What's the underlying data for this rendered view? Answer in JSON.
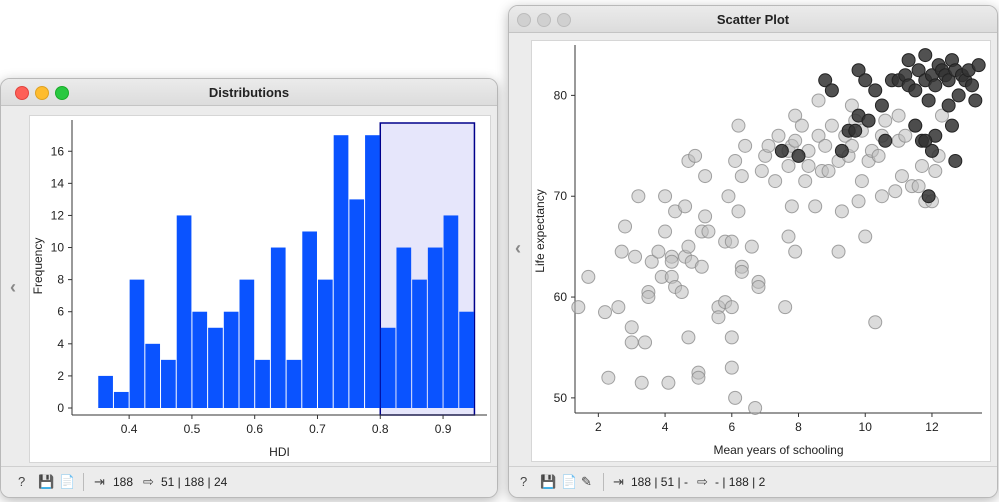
{
  "distributions": {
    "title": "Distributions",
    "status": {
      "input_count": "188",
      "output_counts": "51 | 188 | 24"
    }
  },
  "scatter": {
    "title": "Scatter Plot",
    "status": {
      "input_counts": "188 | 51 | -",
      "output_counts": "- | 188 | 2"
    }
  },
  "icons": {
    "help": "help-icon",
    "save": "save-icon",
    "report": "report-icon",
    "input": "input-icon",
    "output": "output-icon",
    "brush": "brush-icon"
  },
  "colors": {
    "bar": "#0a53ff",
    "selection_fill": "#e6e6fb",
    "selection_border": "#00008b",
    "point_gray": "#bdbdbd",
    "point_dark": "#333333"
  },
  "chart_data": [
    {
      "type": "bar",
      "xlabel": "HDI",
      "ylabel": "Frequency",
      "x_ticks": [
        "0.4",
        "0.5",
        "0.6",
        "0.7",
        "0.8",
        "0.9"
      ],
      "y_ticks": [
        "0",
        "2",
        "4",
        "6",
        "8",
        "10",
        "12",
        "14",
        "16"
      ],
      "bin_start": 0.35,
      "bin_width": 0.025,
      "values": [
        2,
        1,
        8,
        4,
        3,
        12,
        6,
        5,
        6,
        8,
        3,
        10,
        3,
        11,
        8,
        17,
        13,
        17,
        5,
        10,
        8,
        10,
        12,
        6
      ],
      "ylim": [
        0,
        17.2
      ],
      "selection": [
        0.8,
        0.95
      ]
    },
    {
      "type": "scatter",
      "xlabel": "Mean years of schooling",
      "ylabel": "Life expectancy",
      "x_ticks": [
        "2",
        "4",
        "6",
        "8",
        "10",
        "12"
      ],
      "y_ticks": [
        "50",
        "60",
        "70",
        "80"
      ],
      "xlim": [
        1.3,
        13.5
      ],
      "ylim": [
        48.5,
        85
      ],
      "points_gray": [
        [
          1.4,
          59
        ],
        [
          1.7,
          62
        ],
        [
          2.2,
          58.5
        ],
        [
          2.3,
          52
        ],
        [
          2.6,
          59
        ],
        [
          2.7,
          64.5
        ],
        [
          2.8,
          67
        ],
        [
          3.0,
          57
        ],
        [
          3.0,
          55.5
        ],
        [
          3.1,
          64
        ],
        [
          3.2,
          70
        ],
        [
          3.3,
          51.5
        ],
        [
          3.4,
          55.5
        ],
        [
          3.5,
          60.5
        ],
        [
          3.5,
          60
        ],
        [
          3.6,
          63.5
        ],
        [
          3.8,
          64.5
        ],
        [
          3.9,
          62
        ],
        [
          4.0,
          70
        ],
        [
          4.0,
          66.5
        ],
        [
          4.1,
          51.5
        ],
        [
          4.2,
          64
        ],
        [
          4.2,
          63.5
        ],
        [
          4.2,
          62
        ],
        [
          4.3,
          61
        ],
        [
          4.3,
          68.5
        ],
        [
          4.5,
          60.5
        ],
        [
          4.6,
          69
        ],
        [
          4.6,
          64
        ],
        [
          4.7,
          56
        ],
        [
          4.7,
          73.5
        ],
        [
          4.7,
          65
        ],
        [
          4.8,
          63.5
        ],
        [
          4.9,
          74
        ],
        [
          5.0,
          52.5
        ],
        [
          5.0,
          52
        ],
        [
          5.1,
          66.5
        ],
        [
          5.1,
          63
        ],
        [
          5.2,
          72
        ],
        [
          5.2,
          68
        ],
        [
          5.3,
          66.5
        ],
        [
          5.6,
          59
        ],
        [
          5.6,
          58
        ],
        [
          5.8,
          65.5
        ],
        [
          5.8,
          59.5
        ],
        [
          5.9,
          70
        ],
        [
          6.0,
          53
        ],
        [
          6.0,
          56
        ],
        [
          6.0,
          65.5
        ],
        [
          6.0,
          59
        ],
        [
          6.1,
          50
        ],
        [
          6.1,
          73.5
        ],
        [
          6.2,
          77
        ],
        [
          6.2,
          68.5
        ],
        [
          6.3,
          63
        ],
        [
          6.3,
          62.5
        ],
        [
          6.3,
          72
        ],
        [
          6.4,
          75
        ],
        [
          6.6,
          65
        ],
        [
          6.7,
          49
        ],
        [
          6.8,
          61.5
        ],
        [
          6.8,
          61
        ],
        [
          6.9,
          72.5
        ],
        [
          7.0,
          74
        ],
        [
          7.1,
          75
        ],
        [
          7.3,
          71.5
        ],
        [
          7.4,
          76
        ],
        [
          7.6,
          59
        ],
        [
          7.7,
          74.5
        ],
        [
          7.7,
          73
        ],
        [
          7.7,
          66
        ],
        [
          7.8,
          69
        ],
        [
          7.8,
          75
        ],
        [
          7.9,
          78
        ],
        [
          7.9,
          64.5
        ],
        [
          7.9,
          75.5
        ],
        [
          8.1,
          77
        ],
        [
          8.2,
          71.5
        ],
        [
          8.3,
          73
        ],
        [
          8.3,
          74.5
        ],
        [
          8.5,
          69
        ],
        [
          8.6,
          76
        ],
        [
          8.6,
          79.5
        ],
        [
          8.7,
          72.5
        ],
        [
          8.8,
          75
        ],
        [
          8.9,
          72.5
        ],
        [
          9.0,
          77
        ],
        [
          9.2,
          73.5
        ],
        [
          9.2,
          64.5
        ],
        [
          9.3,
          68.5
        ],
        [
          9.4,
          76
        ],
        [
          9.5,
          74
        ],
        [
          9.6,
          79
        ],
        [
          9.6,
          75
        ],
        [
          9.7,
          77.5
        ],
        [
          9.8,
          69.5
        ],
        [
          9.9,
          71.5
        ],
        [
          9.9,
          76.5
        ],
        [
          10.0,
          66
        ],
        [
          10.1,
          73.5
        ],
        [
          10.2,
          74.5
        ],
        [
          10.3,
          57.5
        ],
        [
          10.4,
          74
        ],
        [
          10.5,
          76
        ],
        [
          10.5,
          70
        ],
        [
          10.6,
          77.5
        ],
        [
          10.9,
          70.5
        ],
        [
          11.0,
          75.5
        ],
        [
          11.0,
          78
        ],
        [
          11.1,
          72
        ],
        [
          11.2,
          76
        ],
        [
          11.4,
          71
        ],
        [
          11.5,
          77
        ],
        [
          11.6,
          71
        ],
        [
          11.7,
          73
        ],
        [
          11.8,
          69.5
        ],
        [
          12.0,
          69.5
        ],
        [
          12.1,
          72.5
        ],
        [
          12.2,
          74
        ],
        [
          12.3,
          78
        ]
      ],
      "points_dark": [
        [
          7.5,
          74.5
        ],
        [
          8.0,
          74
        ],
        [
          8.8,
          81.5
        ],
        [
          9.0,
          80.5
        ],
        [
          9.3,
          74.5
        ],
        [
          9.5,
          76.5
        ],
        [
          9.7,
          76.5
        ],
        [
          9.8,
          82.5
        ],
        [
          9.8,
          78
        ],
        [
          10.0,
          81.5
        ],
        [
          10.1,
          77.5
        ],
        [
          10.3,
          80.5
        ],
        [
          10.5,
          79
        ],
        [
          10.6,
          75.5
        ],
        [
          10.8,
          81.5
        ],
        [
          11.0,
          81.5
        ],
        [
          11.2,
          82
        ],
        [
          11.3,
          83.5
        ],
        [
          11.3,
          81
        ],
        [
          11.5,
          80.5
        ],
        [
          11.5,
          77
        ],
        [
          11.6,
          82.5
        ],
        [
          11.7,
          75.5
        ],
        [
          11.8,
          84
        ],
        [
          11.8,
          81.5
        ],
        [
          11.9,
          79.5
        ],
        [
          12.0,
          82
        ],
        [
          12.0,
          74.5
        ],
        [
          12.1,
          81
        ],
        [
          12.1,
          76
        ],
        [
          12.2,
          83
        ],
        [
          12.3,
          82.5
        ],
        [
          12.4,
          82
        ],
        [
          12.5,
          81.5
        ],
        [
          12.5,
          79
        ],
        [
          12.6,
          83.5
        ],
        [
          12.6,
          77
        ],
        [
          12.7,
          82.5
        ],
        [
          12.8,
          80
        ],
        [
          12.9,
          82
        ],
        [
          13.0,
          81.5
        ],
        [
          12.7,
          73.5
        ],
        [
          13.1,
          82.5
        ],
        [
          13.2,
          81
        ],
        [
          13.3,
          79.5
        ],
        [
          13.4,
          83
        ],
        [
          11.9,
          70
        ],
        [
          11.8,
          75.5
        ]
      ]
    }
  ]
}
